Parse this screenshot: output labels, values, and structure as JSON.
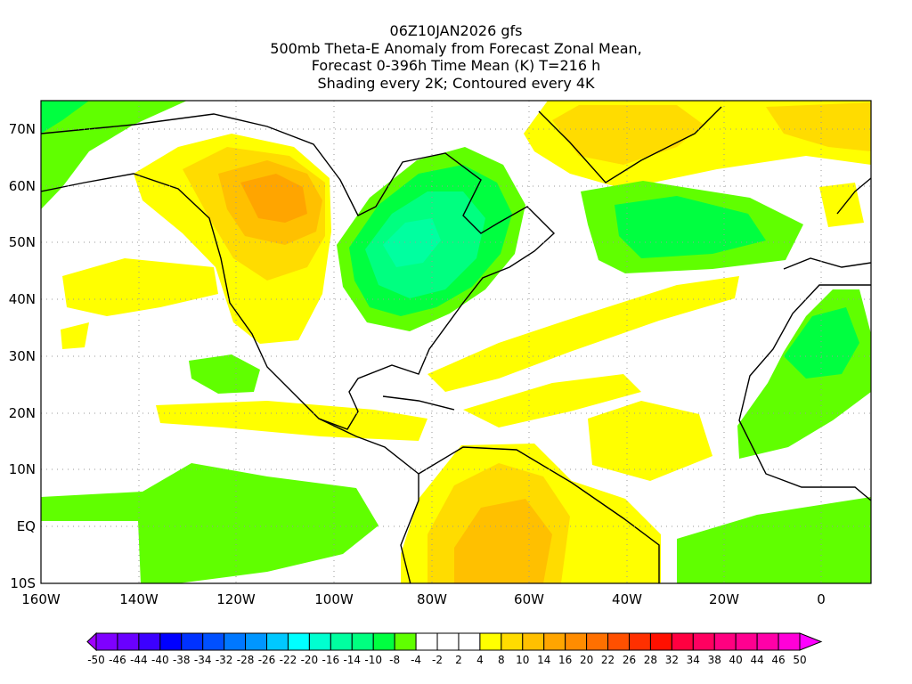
{
  "title": {
    "line1": "06Z10JAN2026 gfs",
    "line2": "500mb Theta-E Anomaly from Forecast Zonal Mean,",
    "line3": "Forecast 0-396h Time Mean (K) T=216 h",
    "line4": "Shading every 2K; Contoured every 4K"
  },
  "axes": {
    "lon_labels": [
      "160W",
      "140W",
      "120W",
      "100W",
      "80W",
      "60W",
      "40W",
      "20W",
      "0"
    ],
    "lat_labels": [
      "70N",
      "60N",
      "50N",
      "40N",
      "30N",
      "20N",
      "10N",
      "EQ",
      "10S"
    ]
  },
  "colorbar": {
    "labels": [
      "-50",
      "-46",
      "-44",
      "-40",
      "-38",
      "-34",
      "-32",
      "-28",
      "-26",
      "-22",
      "-20",
      "-16",
      "-14",
      "-10",
      "-8",
      "-4",
      "-2",
      "2",
      "4",
      "8",
      "10",
      "14",
      "16",
      "20",
      "22",
      "26",
      "28",
      "32",
      "34",
      "38",
      "40",
      "44",
      "46",
      "50"
    ],
    "colors": [
      "#7f00ff",
      "#6a00ff",
      "#3c00ff",
      "#0000ff",
      "#0032ff",
      "#0050ff",
      "#0078ff",
      "#0096ff",
      "#00c8ff",
      "#00ffff",
      "#00ffd0",
      "#00ffa0",
      "#00ff80",
      "#00ff40",
      "#60ff00",
      "#ffffff",
      "#ffffff",
      "#ffffff",
      "#ffff00",
      "#ffdc00",
      "#ffc000",
      "#ffa500",
      "#ff8c00",
      "#ff7000",
      "#ff5000",
      "#ff3000",
      "#ff1000",
      "#ff0040",
      "#ff0060",
      "#ff0080",
      "#ff0090",
      "#ff00a8",
      "#ff00d8"
    ],
    "low_extend_color": "#a000ff",
    "high_extend_color": "#ff00ff"
  }
}
